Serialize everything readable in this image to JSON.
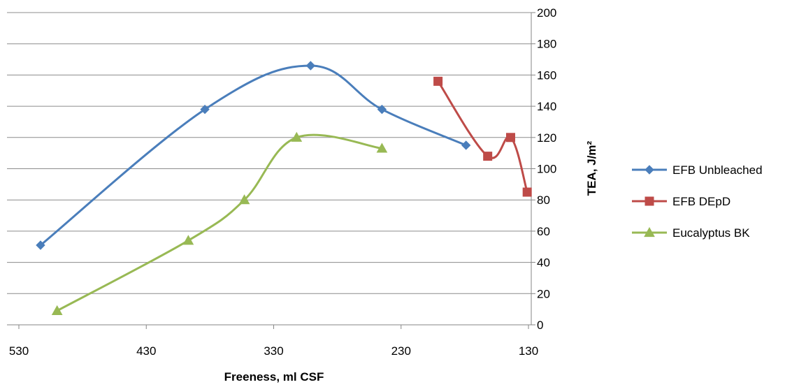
{
  "chart_data": {
    "type": "line",
    "xlabel": "Freeness, ml CSF",
    "ylabel": "TEA, J/m²",
    "x_reversed": true,
    "xlim": [
      130,
      540
    ],
    "ylim": [
      0,
      200
    ],
    "x_ticks": [
      530,
      430,
      330,
      230,
      130
    ],
    "y_ticks": [
      0,
      20,
      40,
      60,
      80,
      100,
      120,
      140,
      160,
      180,
      200
    ],
    "grid": "horizontal",
    "legend_position": "right",
    "smoothed": true,
    "series": [
      {
        "name": "EFB Unbleached",
        "color": "#4a7ebb",
        "marker": "diamond",
        "x": [
          513,
          384,
          301,
          245,
          179
        ],
        "y": [
          51,
          138,
          166,
          138,
          115
        ]
      },
      {
        "name": "EFB DEpD",
        "color": "#be4b48",
        "marker": "square",
        "x": [
          201,
          162,
          144,
          131
        ],
        "y": [
          156,
          108,
          120,
          85
        ]
      },
      {
        "name": "Eucalyptus BK",
        "color": "#98b954",
        "marker": "triangle",
        "x": [
          500,
          397,
          353,
          312,
          245
        ],
        "y": [
          9,
          54,
          80,
          120,
          113
        ]
      }
    ]
  }
}
